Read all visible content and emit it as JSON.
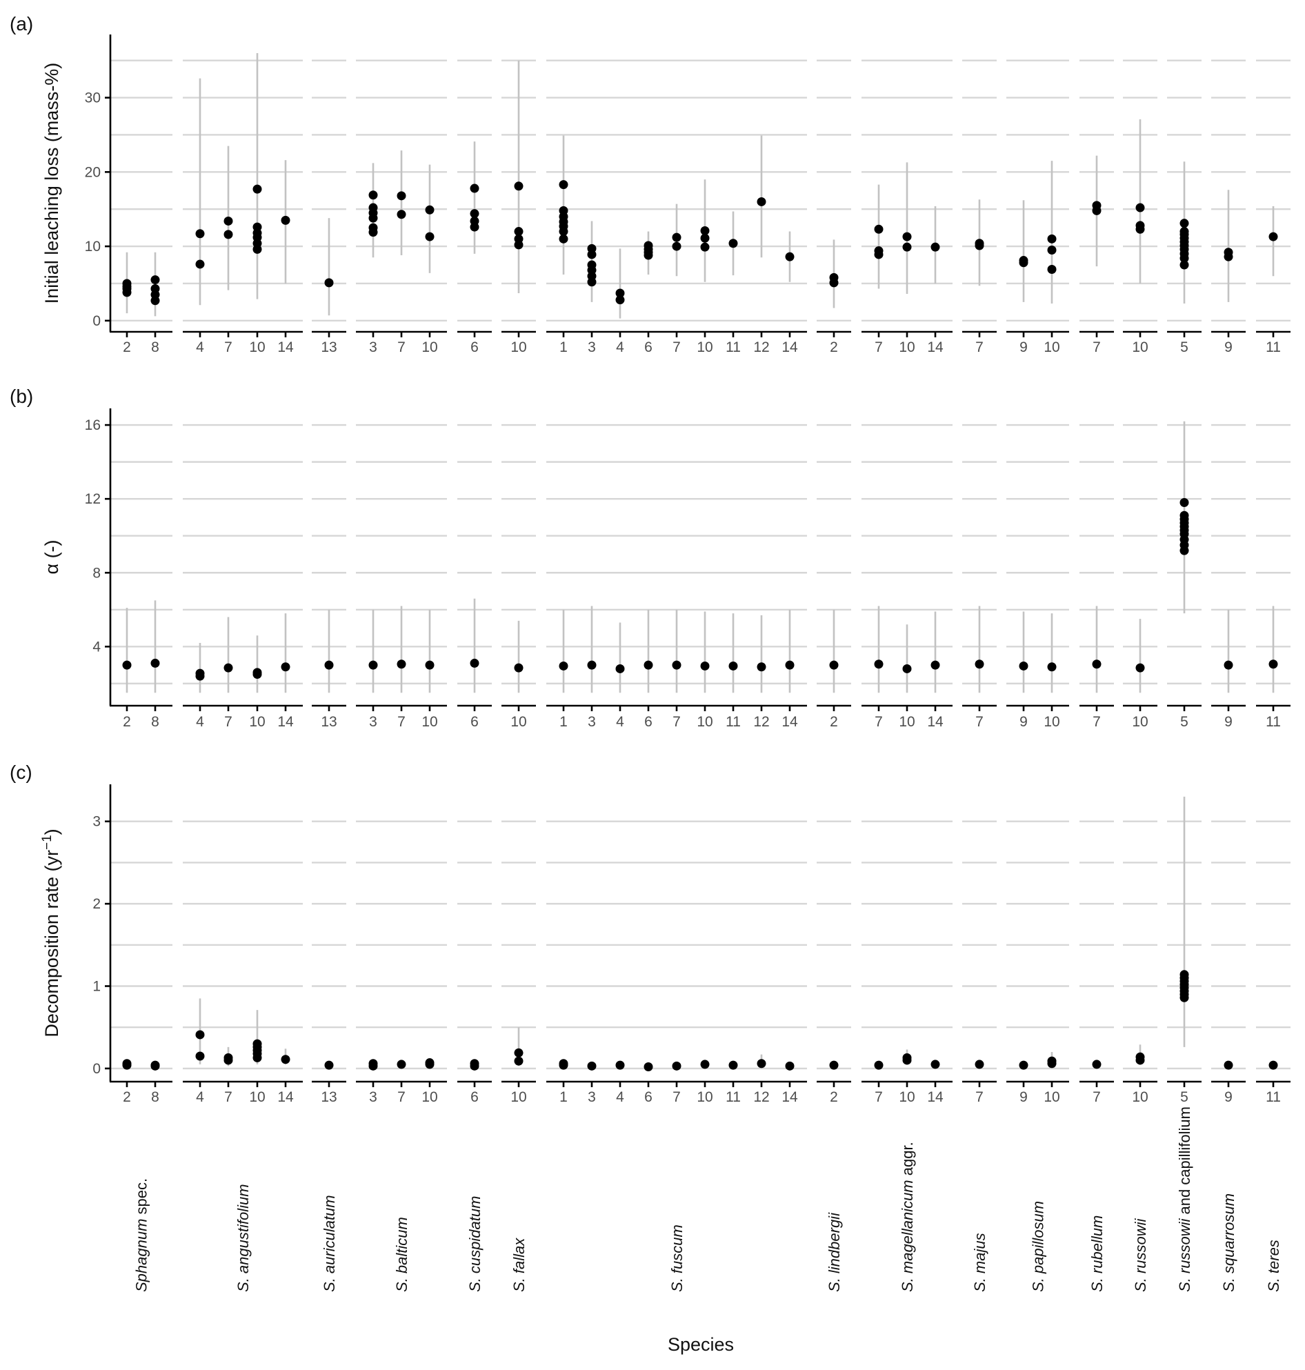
{
  "chart_data": {
    "type": "scatter",
    "xlabel": "Species",
    "groups": [
      {
        "label": "Sphagnum spec.",
        "italic": "Sphagnum",
        "rest": " spec.",
        "sites": [
          "2",
          "8"
        ]
      },
      {
        "label": "S. angustifolium",
        "italic": "S. angustifolium",
        "rest": "",
        "sites": [
          "4",
          "7",
          "10",
          "14"
        ]
      },
      {
        "label": "S. auriculatum",
        "italic": "S. auriculatum",
        "rest": "",
        "sites": [
          "13"
        ]
      },
      {
        "label": "S. balticum",
        "italic": "S. balticum",
        "rest": "",
        "sites": [
          "3",
          "7",
          "10"
        ]
      },
      {
        "label": "S. cuspidatum",
        "italic": "S. cuspidatum",
        "rest": "",
        "sites": [
          "6"
        ]
      },
      {
        "label": "S. fallax",
        "italic": "S. fallax",
        "rest": "",
        "sites": [
          "10"
        ]
      },
      {
        "label": "S. fuscum",
        "italic": "S. fuscum",
        "rest": "",
        "sites": [
          "1",
          "3",
          "4",
          "6",
          "7",
          "10",
          "11",
          "12",
          "14"
        ]
      },
      {
        "label": "S. lindbergii",
        "italic": "S. lindbergii",
        "rest": "",
        "sites": [
          "2"
        ]
      },
      {
        "label": "S. magellanicum aggr.",
        "italic": "S. magellanicum",
        "rest": " aggr.",
        "sites": [
          "7",
          "10",
          "14"
        ]
      },
      {
        "label": "S. majus",
        "italic": "S. majus",
        "rest": "",
        "sites": [
          "7"
        ]
      },
      {
        "label": "S. papillosum",
        "italic": "S. papillosum",
        "rest": "",
        "sites": [
          "9",
          "10"
        ]
      },
      {
        "label": "S. rubellum",
        "italic": "S. rubellum",
        "rest": "",
        "sites": [
          "7"
        ]
      },
      {
        "label": "S. russowii",
        "italic": "S. russowii",
        "rest": "",
        "sites": [
          "10"
        ]
      },
      {
        "label": "S. russowii and capillifolium",
        "italic": "S. russowii",
        "rest": " and capillifolium",
        "sites": [
          "5"
        ]
      },
      {
        "label": "S. squarrosum",
        "italic": "S. squarrosum",
        "rest": "",
        "sites": [
          "9"
        ]
      },
      {
        "label": "S. teres",
        "italic": "S. teres",
        "rest": "",
        "sites": [
          "11"
        ]
      }
    ],
    "panels": [
      {
        "tag": "(a)",
        "ylabel": "Initial leaching loss (mass-%)",
        "ylim": [
          -1.5,
          38.5
        ],
        "yticks": [
          0,
          10,
          20,
          30
        ],
        "minor": [
          5,
          15,
          25,
          35
        ],
        "values": [
          [
            [
              3.8,
              4.3,
              4.6,
              5.0
            ],
            [
              2.7,
              3.5,
              4.3,
              5.5
            ]
          ],
          [
            [
              7.6,
              11.7
            ],
            [
              11.6,
              13.4
            ],
            [
              9.6,
              10.4,
              11.2,
              11.8,
              12.6,
              17.7
            ],
            [
              13.5
            ]
          ],
          [
            [
              5.1
            ]
          ],
          [
            [
              11.9,
              12.5,
              13.8,
              14.5,
              15.2,
              16.9
            ],
            [
              14.3,
              16.8
            ],
            [
              11.3,
              14.9
            ]
          ],
          [
            [
              12.6,
              13.4,
              14.4,
              17.8
            ]
          ],
          [
            [
              10.2,
              11.0,
              12.0,
              18.1
            ]
          ],
          [
            [
              11.0,
              12.0,
              12.7,
              13.3,
              14.0,
              14.8,
              18.3
            ],
            [
              5.2,
              6.0,
              6.8,
              7.5,
              8.9,
              9.7
            ],
            [
              2.8,
              3.7
            ],
            [
              8.8,
              9.2,
              9.6,
              10.1
            ],
            [
              10.0,
              11.2
            ],
            [
              9.9,
              11.1,
              12.1
            ],
            [
              10.4
            ],
            [
              16.0
            ],
            [
              8.6
            ]
          ],
          [
            [
              5.1,
              5.8
            ]
          ],
          [
            [
              8.9,
              9.4,
              12.3
            ],
            [
              9.9,
              11.3
            ],
            [
              9.9
            ]
          ],
          [
            [
              10.1,
              10.4
            ]
          ],
          [
            [
              7.8,
              8.1
            ],
            [
              6.9,
              9.5,
              11.0
            ]
          ],
          [
            [
              14.8,
              15.5
            ]
          ],
          [
            [
              12.3,
              12.8,
              15.2
            ]
          ],
          [
            [
              7.5,
              8.4,
              9.0,
              9.6,
              10.1,
              10.6,
              11.1,
              11.6,
              12.0,
              13.1
            ]
          ],
          [
            [
              8.6,
              9.2
            ]
          ],
          [
            [
              11.3
            ]
          ]
        ],
        "errors": [
          [
            [
              1.0,
              9.2
            ],
            [
              0.6,
              9.2
            ]
          ],
          [
            [
              2.1,
              32.6
            ],
            [
              4.1,
              23.5
            ],
            [
              2.9,
              36.0
            ],
            [
              5.0,
              21.6
            ]
          ],
          [
            [
              0.7,
              13.8
            ]
          ],
          [
            [
              8.5,
              21.2
            ],
            [
              8.8,
              22.9
            ],
            [
              6.4,
              21.0
            ]
          ],
          [
            [
              9.0,
              24.1
            ]
          ],
          [
            [
              3.7,
              35.0
            ]
          ],
          [
            [
              6.2,
              24.9
            ],
            [
              2.5,
              13.4
            ],
            [
              0.3,
              9.7
            ],
            [
              6.2,
              12.0
            ],
            [
              6.0,
              15.7
            ],
            [
              5.2,
              19.0
            ],
            [
              6.1,
              14.7
            ],
            [
              8.5,
              24.9
            ],
            [
              5.2,
              12.0
            ]
          ],
          [
            [
              1.7,
              10.9
            ]
          ],
          [
            [
              4.3,
              18.3
            ],
            [
              3.6,
              21.3
            ],
            [
              5.0,
              15.4
            ]
          ],
          [
            [
              4.7,
              16.3
            ]
          ],
          [
            [
              2.5,
              16.2
            ],
            [
              2.3,
              21.5
            ]
          ],
          [
            [
              7.3,
              22.2
            ]
          ],
          [
            [
              5.0,
              27.1
            ]
          ],
          [
            [
              2.3,
              21.4
            ]
          ],
          [
            [
              2.5,
              17.6
            ]
          ],
          [
            [
              6.0,
              15.4
            ]
          ]
        ]
      },
      {
        "tag": "(b)",
        "ylabel": "α (-)",
        "ylim": [
          0.8,
          16.9
        ],
        "yticks": [
          4,
          8,
          12,
          16
        ],
        "minor": [
          2,
          6,
          10,
          14
        ],
        "values": [
          [
            [
              3.0
            ],
            [
              3.1
            ]
          ],
          [
            [
              2.4,
              2.55
            ],
            [
              2.85
            ],
            [
              2.5,
              2.6
            ],
            [
              2.9
            ]
          ],
          [
            [
              3.0
            ]
          ],
          [
            [
              3.0
            ],
            [
              3.05
            ],
            [
              3.0
            ]
          ],
          [
            [
              3.1
            ]
          ],
          [
            [
              2.85
            ]
          ],
          [
            [
              2.95
            ],
            [
              3.0
            ],
            [
              2.8
            ],
            [
              3.0
            ],
            [
              3.0
            ],
            [
              2.95
            ],
            [
              2.95
            ],
            [
              2.9
            ],
            [
              3.0
            ]
          ],
          [
            [
              3.0
            ]
          ],
          [
            [
              3.05
            ],
            [
              2.8
            ],
            [
              3.0
            ]
          ],
          [
            [
              3.05
            ]
          ],
          [
            [
              2.95
            ],
            [
              2.9
            ]
          ],
          [
            [
              3.05
            ]
          ],
          [
            [
              2.85
            ]
          ],
          [
            [
              9.2,
              9.5,
              9.8,
              10.1,
              10.3,
              10.5,
              10.7,
              10.9,
              11.1,
              11.8
            ]
          ],
          [
            [
              3.0
            ]
          ],
          [
            [
              3.05
            ]
          ]
        ],
        "errors": [
          [
            [
              1.5,
              6.1
            ],
            [
              1.5,
              6.5
            ]
          ],
          [
            [
              1.5,
              4.2
            ],
            [
              1.5,
              5.6
            ],
            [
              1.5,
              4.6
            ],
            [
              1.5,
              5.8
            ]
          ],
          [
            [
              1.5,
              6.0
            ]
          ],
          [
            [
              1.5,
              6.0
            ],
            [
              1.5,
              6.2
            ],
            [
              1.5,
              6.0
            ]
          ],
          [
            [
              1.5,
              6.6
            ]
          ],
          [
            [
              1.5,
              5.4
            ]
          ],
          [
            [
              1.5,
              6.0
            ],
            [
              1.5,
              6.2
            ],
            [
              1.5,
              5.3
            ],
            [
              1.5,
              6.0
            ],
            [
              1.5,
              6.0
            ],
            [
              1.5,
              5.9
            ],
            [
              1.5,
              5.8
            ],
            [
              1.5,
              5.7
            ],
            [
              1.5,
              6.0
            ]
          ],
          [
            [
              1.5,
              6.0
            ]
          ],
          [
            [
              1.5,
              6.2
            ],
            [
              1.5,
              5.2
            ],
            [
              1.5,
              5.9
            ]
          ],
          [
            [
              1.5,
              6.2
            ]
          ],
          [
            [
              1.5,
              5.9
            ],
            [
              1.5,
              5.8
            ]
          ],
          [
            [
              1.5,
              6.2
            ]
          ],
          [
            [
              1.5,
              5.5
            ]
          ],
          [
            [
              5.8,
              16.2
            ]
          ],
          [
            [
              1.5,
              6.0
            ]
          ],
          [
            [
              1.5,
              6.2
            ]
          ]
        ]
      },
      {
        "tag": "(c)",
        "ylabel": "Decomposition rate (yr",
        "ylabel_sup": "−1",
        "ylabel_end": ")",
        "ylim": [
          -0.16,
          3.45
        ],
        "yticks": [
          0,
          1,
          2,
          3
        ],
        "minor": [
          0.5,
          1.5,
          2.5
        ],
        "values": [
          [
            [
              0.04,
              0.06
            ],
            [
              0.03,
              0.04
            ]
          ],
          [
            [
              0.15,
              0.41
            ],
            [
              0.1,
              0.13
            ],
            [
              0.13,
              0.18,
              0.22,
              0.26,
              0.3
            ],
            [
              0.11
            ]
          ],
          [
            [
              0.04
            ]
          ],
          [
            [
              0.03,
              0.06
            ],
            [
              0.05
            ],
            [
              0.05,
              0.07
            ]
          ],
          [
            [
              0.03,
              0.06
            ]
          ],
          [
            [
              0.09,
              0.19
            ]
          ],
          [
            [
              0.04,
              0.06
            ],
            [
              0.03
            ],
            [
              0.04
            ],
            [
              0.02
            ],
            [
              0.03
            ],
            [
              0.05
            ],
            [
              0.04
            ],
            [
              0.06
            ],
            [
              0.03
            ]
          ],
          [
            [
              0.04
            ]
          ],
          [
            [
              0.04
            ],
            [
              0.1,
              0.13
            ],
            [
              0.05
            ]
          ],
          [
            [
              0.05
            ]
          ],
          [
            [
              0.04
            ],
            [
              0.06,
              0.09
            ]
          ],
          [
            [
              0.05
            ]
          ],
          [
            [
              0.1,
              0.14
            ]
          ],
          [
            [
              0.86,
              0.9,
              0.94,
              0.98,
              1.02,
              1.06,
              1.1,
              1.14
            ]
          ],
          [
            [
              0.04
            ]
          ],
          [
            [
              0.04
            ]
          ]
        ],
        "errors": [
          [
            null,
            null
          ],
          [
            [
              0.05,
              0.85
            ],
            [
              0.03,
              0.26
            ],
            [
              0.05,
              0.71
            ],
            [
              0.05,
              0.24
            ]
          ],
          [
            null
          ],
          [
            null,
            null,
            null
          ],
          [
            [
              0.0,
              0.1
            ]
          ],
          [
            [
              0.03,
              0.5
            ]
          ],
          [
            null,
            null,
            null,
            null,
            null,
            null,
            null,
            [
              0.02,
              0.17
            ],
            null
          ],
          [
            null
          ],
          [
            null,
            [
              0.05,
              0.23
            ],
            null
          ],
          [
            null
          ],
          [
            null,
            [
              0.02,
              0.2
            ]
          ],
          [
            null
          ],
          [
            [
              0.05,
              0.29
            ]
          ],
          [
            [
              0.26,
              3.3
            ]
          ],
          [
            null
          ],
          [
            null
          ]
        ]
      }
    ]
  },
  "colors": {
    "point": "#000000",
    "errorbar": "#c2c2c2",
    "grid": "#d6d6d6",
    "axis": "#000000"
  }
}
